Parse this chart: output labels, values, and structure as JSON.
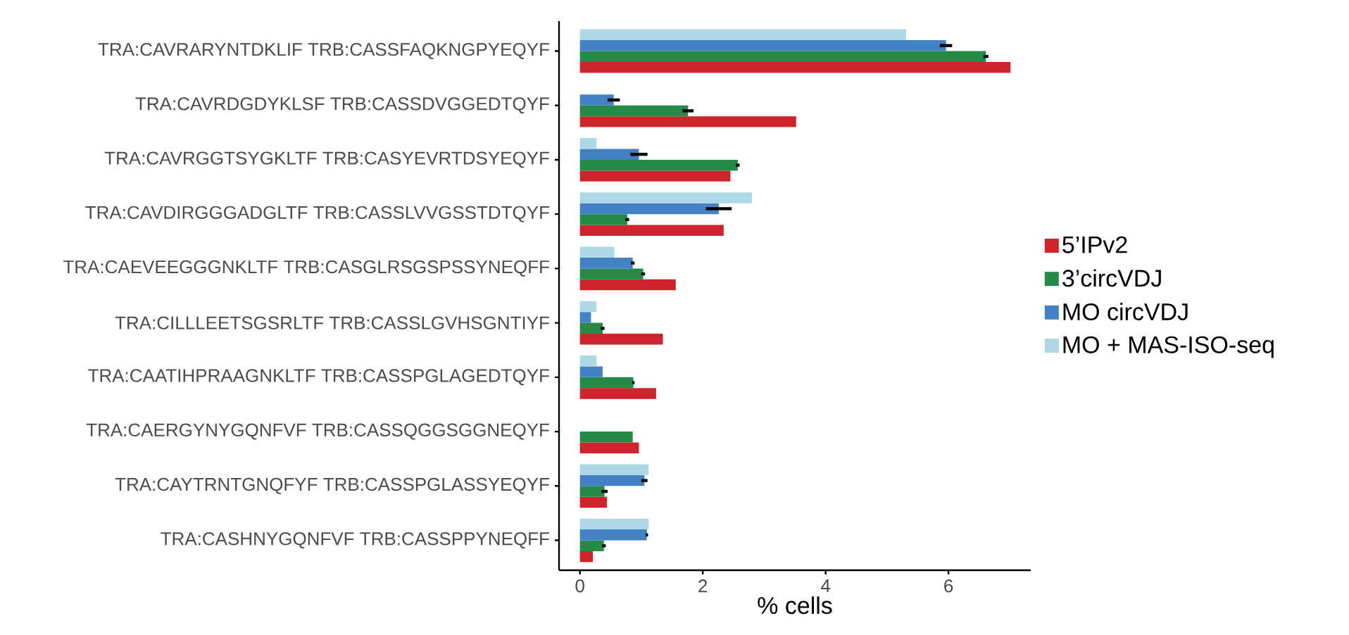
{
  "chart_data": {
    "type": "bar",
    "orientation": "horizontal",
    "xlabel": "% cells",
    "categories": [
      "TRA:CAVRARYNTDKLIF TRB:CASSFAQKNGPYEQYF",
      "TRA:CAVRDGDYKLSF TRB:CASSDVGGEDTQYF",
      "TRA:CAVRGGTSYGKLTF TRB:CASYEVRTDSYEQYF",
      "TRA:CAVDIRGGGADGLTF TRB:CASSLVVGSSTDTQYF",
      "TRA:CAEVEEGGGNKLTF TRB:CASGLRSGSPSSYNEQFF",
      "TRA:CILLLEETSGSRLTF TRB:CASSLGVHSGNTIYF",
      "TRA:CAATIHPRAAGNKLTF TRB:CASSPGLAGEDTQYF",
      "TRA:CAERGYNYGQNFVF TRB:CASSQGGSGGNEQYF",
      "TRA:CAYTRNTGNQFYF TRB:CASSPGLASSYEQYF",
      "TRA:CASHNYGQNFVF TRB:CASSPPYNEQFF"
    ],
    "series": [
      {
        "name": "5’IPv2",
        "color": "#cf232b",
        "values": [
          7.01,
          3.52,
          2.45,
          2.34,
          1.56,
          1.35,
          1.24,
          0.96,
          0.44,
          0.21
        ]
      },
      {
        "name": "3’circVDJ",
        "color": "#238b45",
        "values": [
          6.61,
          1.76,
          2.57,
          0.77,
          1.03,
          0.37,
          0.87,
          0.86,
          0.4,
          0.39
        ],
        "errors": [
          0.04,
          0.09,
          0.03,
          0.03,
          0.03,
          0.03,
          0.02,
          null,
          0.05,
          0.03
        ]
      },
      {
        "name": "MO circVDJ",
        "color": "#4281c4",
        "values": [
          5.96,
          0.55,
          0.96,
          2.26,
          0.86,
          0.18,
          0.37,
          null,
          1.05,
          1.09
        ],
        "errors": [
          0.1,
          0.1,
          0.14,
          0.21,
          0.03,
          null,
          null,
          null,
          0.05,
          0.02
        ]
      },
      {
        "name": "MO + MAS-ISO-seq",
        "color": "#aed8e6",
        "values": [
          5.31,
          null,
          0.27,
          2.8,
          0.56,
          0.27,
          0.27,
          null,
          1.12,
          1.12
        ]
      }
    ],
    "xlim": [
      -0.34,
      7.34
    ],
    "xticks": [
      0,
      2,
      4,
      6
    ],
    "grid": false,
    "legend": "right"
  }
}
